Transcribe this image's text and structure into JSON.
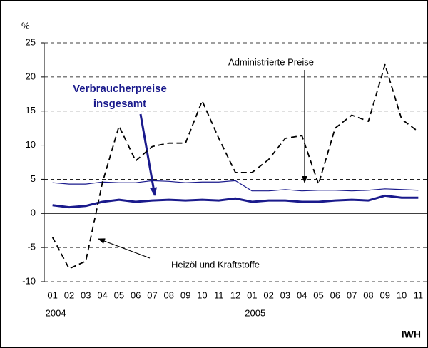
{
  "chart_data": {
    "type": "line",
    "y_unit": "%",
    "source": "IWH",
    "categories": [
      "01",
      "02",
      "03",
      "04",
      "05",
      "06",
      "07",
      "08",
      "09",
      "10",
      "11",
      "12",
      "01",
      "02",
      "03",
      "04",
      "05",
      "06",
      "07",
      "08",
      "09",
      "10",
      "11"
    ],
    "year_groups": [
      {
        "label": "2004",
        "start": 0
      },
      {
        "label": "2005",
        "start": 12
      }
    ],
    "series": [
      {
        "name": "Administrierte Preise",
        "color": "#1a1a8c",
        "width": 1.2,
        "dash": false,
        "values": [
          4.5,
          4.3,
          4.3,
          4.6,
          4.5,
          4.5,
          4.8,
          4.7,
          4.5,
          4.6,
          4.6,
          4.8,
          3.3,
          3.3,
          3.5,
          3.3,
          3.4,
          3.4,
          3.3,
          3.4,
          3.6,
          3.5,
          3.4
        ]
      },
      {
        "name": "Verbraucherpreise insgesamt",
        "color": "#1a1a8c",
        "width": 3,
        "dash": false,
        "values": [
          1.2,
          0.9,
          1.1,
          1.7,
          2.0,
          1.7,
          1.9,
          2.0,
          1.9,
          2.0,
          1.9,
          2.2,
          1.7,
          1.9,
          1.9,
          1.7,
          1.7,
          1.9,
          2.0,
          1.9,
          2.6,
          2.3,
          2.3
        ]
      },
      {
        "name": "Heizöl und Kraftstoffe",
        "color": "#000000",
        "width": 1.8,
        "dash": true,
        "values": [
          -3.5,
          -8.1,
          -7.0,
          4.5,
          12.8,
          7.7,
          9.8,
          10.3,
          10.3,
          16.5,
          11.0,
          6.0,
          6.0,
          7.9,
          11.0,
          11.4,
          4.3,
          12.5,
          14.4,
          13.5,
          21.8,
          13.8,
          12.0
        ]
      }
    ],
    "annotations": [
      "Administrierte Preise",
      "Verbraucherpreise",
      "insgesamt",
      "Heizöl und Kraftstoffe"
    ],
    "ylim": [
      -10,
      25
    ],
    "yticks": [
      -10,
      -5,
      0,
      5,
      10,
      15,
      20,
      25
    ],
    "grid": true
  }
}
